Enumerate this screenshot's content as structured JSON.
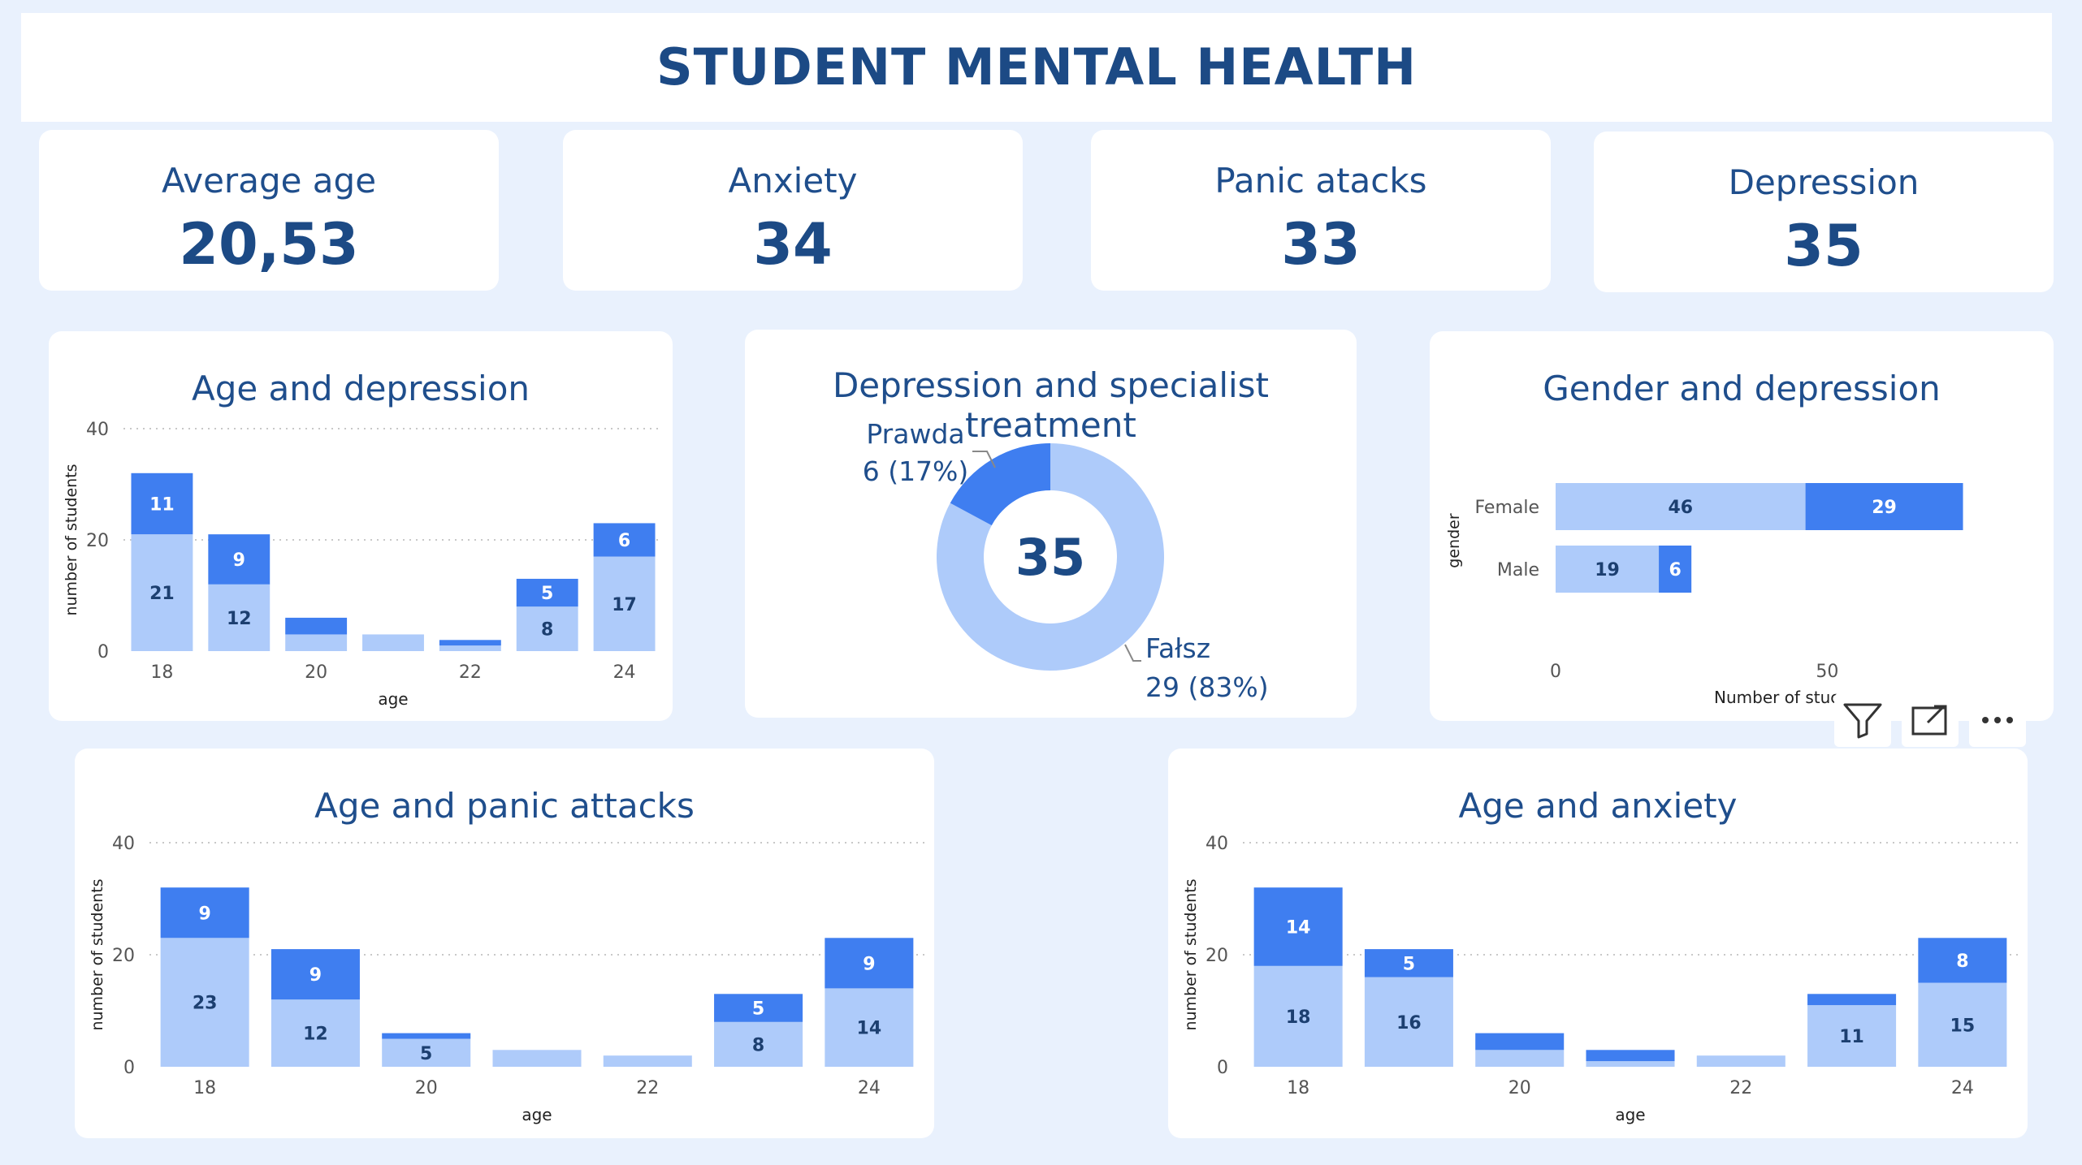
{
  "header": {
    "title": "STUDENT MENTAL HEALTH"
  },
  "kpis": [
    {
      "label": "Average age",
      "value": "20,53"
    },
    {
      "label": "Anxiety",
      "value": "34"
    },
    {
      "label": "Panic atacks",
      "value": "33"
    },
    {
      "label": "Depression",
      "value": "35"
    }
  ],
  "colors": {
    "light": "#aecbfa",
    "dark": "#3f7ef0",
    "grid": "#c8c8c8",
    "axis_text": "#555555"
  },
  "chart_data": [
    {
      "id": "age_depression",
      "type": "bar",
      "stacked": true,
      "title": "Age and depression",
      "xlabel": "age",
      "ylabel": "number of students",
      "categories": [
        18,
        19,
        20,
        21,
        22,
        23,
        24
      ],
      "x_ticks": [
        "18",
        "20",
        "22",
        "24"
      ],
      "y_ticks": [
        "0",
        "20",
        "40"
      ],
      "ylim": [
        0,
        40
      ],
      "grid": true,
      "series": [
        {
          "values": [
            21,
            12,
            3,
            3,
            1,
            8,
            17
          ],
          "labels": [
            "21",
            "12",
            "",
            "",
            "",
            "8",
            "17"
          ]
        },
        {
          "values": [
            11,
            9,
            3,
            0,
            1,
            5,
            6
          ],
          "labels": [
            "11",
            "9",
            "",
            "",
            "",
            "5",
            "6"
          ]
        }
      ]
    },
    {
      "id": "depression_treatment",
      "type": "pie",
      "donut": true,
      "title": "Depression and specialist treatment",
      "center_label": "35",
      "slices": [
        {
          "name": "Prawda",
          "value": 6,
          "label": "6 (17%)"
        },
        {
          "name": "Fałsz",
          "value": 29,
          "label": "29 (83%)"
        }
      ]
    },
    {
      "id": "gender_depression",
      "type": "bar",
      "orientation": "horizontal",
      "stacked": true,
      "title": "Gender and depression",
      "ylabel": "gender",
      "xlabel": "Number of stuc",
      "categories": [
        "Female",
        "Male"
      ],
      "x_ticks": [
        "0",
        "50"
      ],
      "xlim": [
        0,
        83
      ],
      "series": [
        {
          "values": [
            46,
            19
          ],
          "labels": [
            "46",
            "19"
          ]
        },
        {
          "values": [
            29,
            6
          ],
          "labels": [
            "29",
            "6"
          ]
        }
      ]
    },
    {
      "id": "age_panic",
      "type": "bar",
      "stacked": true,
      "title": "Age and panic attacks",
      "xlabel": "age",
      "ylabel": "number of students",
      "categories": [
        18,
        19,
        20,
        21,
        22,
        23,
        24
      ],
      "x_ticks": [
        "18",
        "20",
        "22",
        "24"
      ],
      "y_ticks": [
        "0",
        "20",
        "40"
      ],
      "ylim": [
        0,
        40
      ],
      "grid": true,
      "series": [
        {
          "values": [
            23,
            12,
            5,
            3,
            2,
            8,
            14
          ],
          "labels": [
            "23",
            "12",
            "5",
            "",
            "",
            "8",
            "14"
          ]
        },
        {
          "values": [
            9,
            9,
            1,
            0,
            0,
            5,
            9
          ],
          "labels": [
            "9",
            "9",
            "",
            "",
            "",
            "5",
            "9"
          ]
        }
      ]
    },
    {
      "id": "age_anxiety",
      "type": "bar",
      "stacked": true,
      "title": "Age and anxiety",
      "xlabel": "age",
      "ylabel": "number of students",
      "categories": [
        18,
        19,
        20,
        21,
        22,
        23,
        24
      ],
      "x_ticks": [
        "18",
        "20",
        "22",
        "24"
      ],
      "y_ticks": [
        "0",
        "20",
        "40"
      ],
      "ylim": [
        0,
        40
      ],
      "grid": true,
      "series": [
        {
          "values": [
            18,
            16,
            3,
            1,
            2,
            11,
            15
          ],
          "labels": [
            "18",
            "16",
            "",
            "",
            "",
            "11",
            "15"
          ]
        },
        {
          "values": [
            14,
            5,
            3,
            2,
            0,
            2,
            8
          ],
          "labels": [
            "14",
            "5",
            "",
            "",
            "",
            "",
            "8"
          ]
        }
      ]
    }
  ],
  "toolbar": {
    "icons": [
      "filter-icon",
      "focus-mode-icon",
      "more-options-icon"
    ]
  }
}
